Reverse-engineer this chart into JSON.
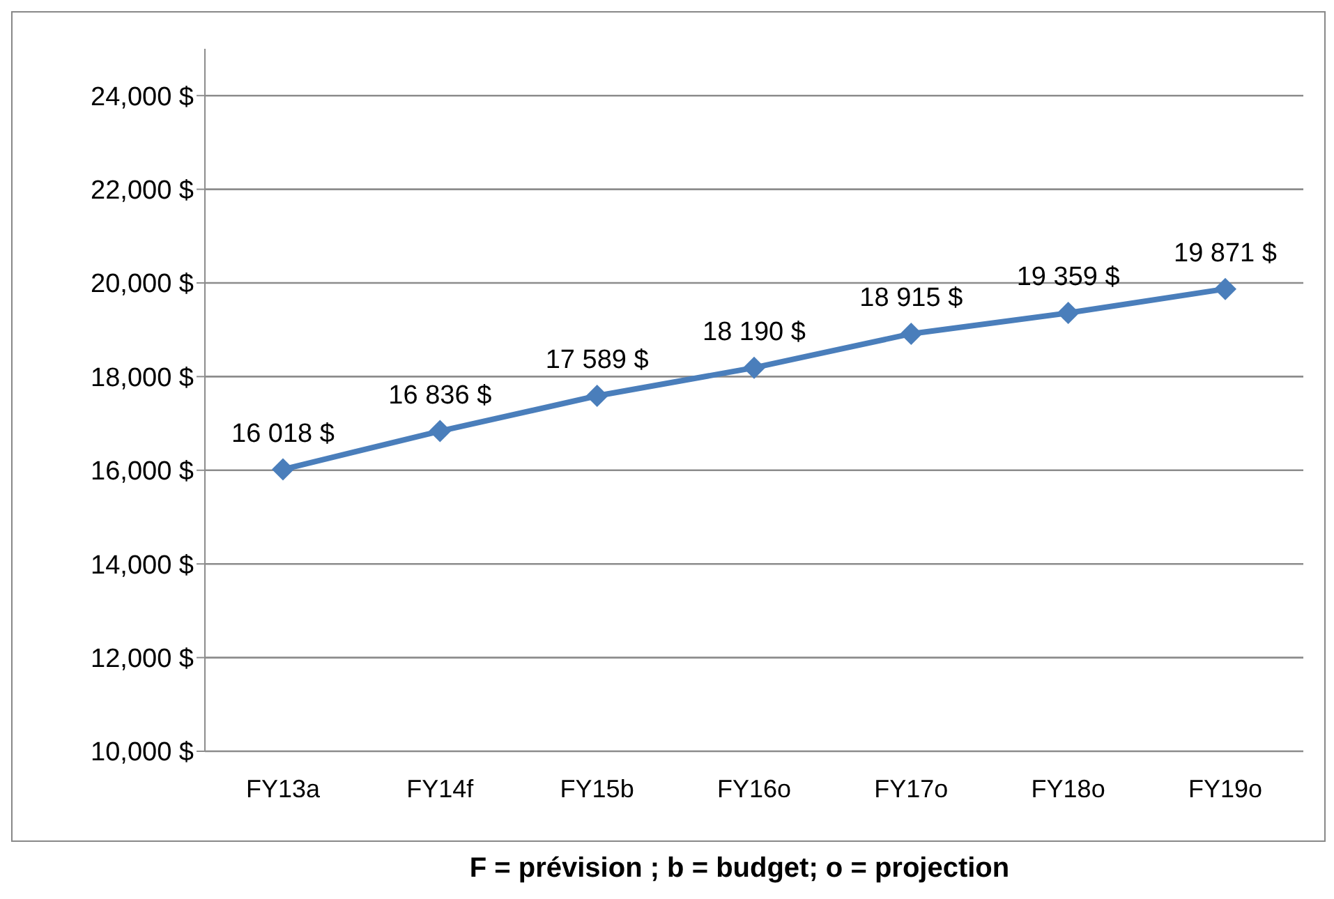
{
  "chart_data": {
    "type": "line",
    "categories": [
      "FY13a",
      "FY14f",
      "FY15b",
      "FY16o",
      "FY17o",
      "FY18o",
      "FY19o"
    ],
    "series": [
      {
        "color": "#4a7ebb",
        "values": [
          16018,
          16836,
          17589,
          18190,
          18915,
          19359,
          19871
        ],
        "value_labels": [
          "16 018 $",
          "16 836 $",
          "17 589 $",
          "18 190 $",
          "18 915 $",
          "19 359 $",
          "19 871 $"
        ]
      }
    ],
    "ylim": [
      10000,
      25000
    ],
    "yticks": [
      {
        "value": 10000,
        "label": "10,000 $"
      },
      {
        "value": 12000,
        "label": "12,000 $"
      },
      {
        "value": 14000,
        "label": "14,000 $"
      },
      {
        "value": 16000,
        "label": "16,000 $"
      },
      {
        "value": 18000,
        "label": "18,000 $"
      },
      {
        "value": 20000,
        "label": "20,000 $"
      },
      {
        "value": 22000,
        "label": "22,000 $"
      },
      {
        "value": 24000,
        "label": "24,000 $"
      }
    ],
    "grid": "y",
    "marker": "diamond",
    "line_style": "solid",
    "annotations": [
      "F = prévision ; b = budget; o = projection"
    ]
  }
}
